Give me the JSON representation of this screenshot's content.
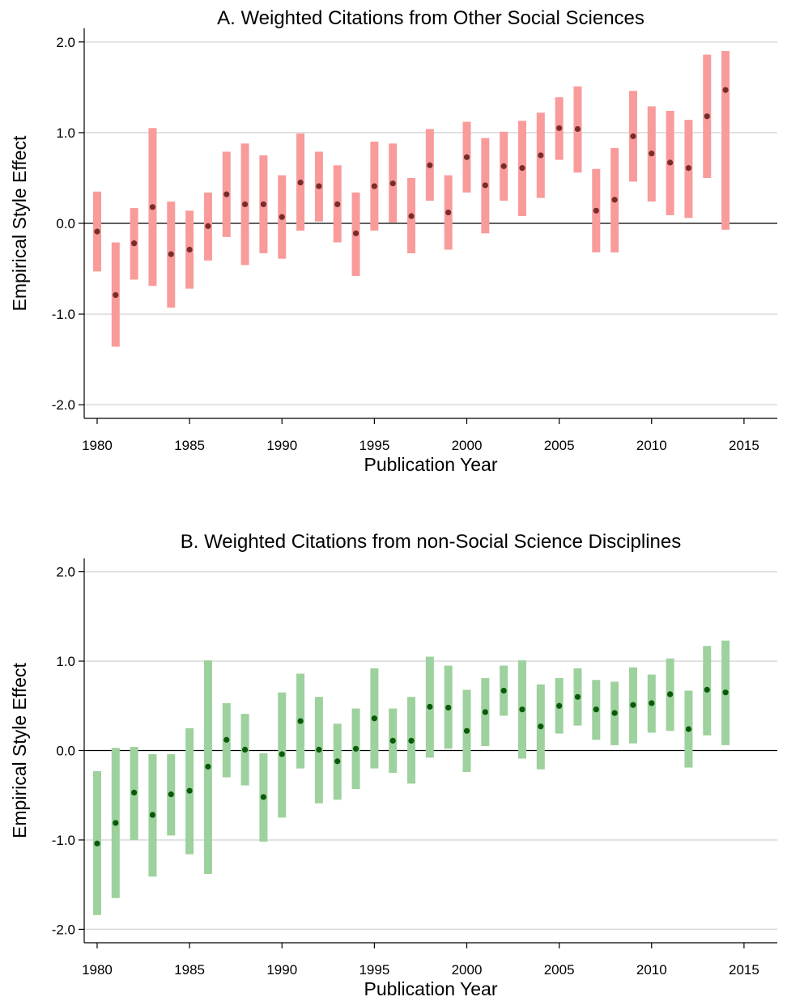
{
  "chart_data": [
    {
      "type": "scatter",
      "title": "A. Weighted Citations from Other Social Sciences",
      "xlabel": "Publication Year",
      "ylabel": "Empirical Style Effect",
      "xlim": [
        1979.3,
        2016.8
      ],
      "ylim": [
        -2.15,
        2.15
      ],
      "xticks": [
        1980,
        1985,
        1990,
        1995,
        2000,
        2005,
        2010,
        2015
      ],
      "yticks": [
        2.0,
        1.0,
        0.0,
        -1.0,
        -2.0
      ],
      "ytick_labels": [
        "2.0",
        "1.0",
        "0.0",
        "-1.0",
        "-2.0"
      ],
      "grid": "horizontal",
      "zero_line": true,
      "colors": {
        "interval": "#f99b9b",
        "point": "#7a2c2c"
      },
      "series": [
        {
          "x": [
            1980,
            1981,
            1982,
            1983,
            1984,
            1985,
            1986,
            1987,
            1988,
            1989,
            1990,
            1991,
            1992,
            1993,
            1994,
            1995,
            1996,
            1997,
            1998,
            1999,
            2000,
            2001,
            2002,
            2003,
            2004,
            2005,
            2006,
            2007,
            2008,
            2009,
            2010,
            2011,
            2012,
            2013,
            2014
          ],
          "y": [
            -0.09,
            -0.79,
            -0.22,
            0.18,
            -0.34,
            -0.29,
            -0.03,
            0.32,
            0.21,
            0.21,
            0.07,
            0.45,
            0.41,
            0.21,
            -0.11,
            0.41,
            0.44,
            0.08,
            0.64,
            0.12,
            0.73,
            0.42,
            0.63,
            0.61,
            0.75,
            1.05,
            1.04,
            0.14,
            0.26,
            0.96,
            0.77,
            0.67,
            0.61,
            1.18,
            1.47
          ],
          "low": [
            -0.53,
            -1.36,
            -0.62,
            -0.69,
            -0.93,
            -0.72,
            -0.41,
            -0.15,
            -0.46,
            -0.33,
            -0.39,
            -0.08,
            0.02,
            -0.21,
            -0.58,
            -0.08,
            0.01,
            -0.33,
            0.25,
            -0.29,
            0.34,
            -0.11,
            0.25,
            0.08,
            0.28,
            0.7,
            0.56,
            -0.32,
            -0.32,
            0.46,
            0.24,
            0.09,
            0.06,
            0.5,
            -0.07
          ],
          "high": [
            0.35,
            -0.21,
            0.17,
            1.05,
            0.24,
            0.14,
            0.34,
            0.79,
            0.88,
            0.75,
            0.53,
            0.99,
            0.79,
            0.64,
            0.34,
            0.9,
            0.88,
            0.5,
            1.04,
            0.53,
            1.12,
            0.94,
            1.01,
            1.13,
            1.22,
            1.39,
            1.51,
            0.6,
            0.83,
            1.46,
            1.29,
            1.24,
            1.14,
            1.86,
            1.9
          ]
        }
      ]
    },
    {
      "type": "scatter",
      "title": "B. Weighted Citations from non-Social Science Disciplines",
      "xlabel": "Publication Year",
      "ylabel": "Empirical Style Effect",
      "xlim": [
        1979.3,
        2016.8
      ],
      "ylim": [
        -2.15,
        2.15
      ],
      "xticks": [
        1980,
        1985,
        1990,
        1995,
        2000,
        2005,
        2010,
        2015
      ],
      "yticks": [
        2.0,
        1.0,
        0.0,
        -1.0,
        -2.0
      ],
      "ytick_labels": [
        "2.0",
        "1.0",
        "0.0",
        "-1.0",
        "-2.0"
      ],
      "grid": "horizontal",
      "zero_line": true,
      "colors": {
        "interval": "#9dd19d",
        "point": "#0a5a0a"
      },
      "series": [
        {
          "x": [
            1980,
            1981,
            1982,
            1983,
            1984,
            1985,
            1986,
            1987,
            1988,
            1989,
            1990,
            1991,
            1992,
            1993,
            1994,
            1995,
            1996,
            1997,
            1998,
            1999,
            2000,
            2001,
            2002,
            2003,
            2004,
            2005,
            2006,
            2007,
            2008,
            2009,
            2010,
            2011,
            2012,
            2013,
            2014
          ],
          "y": [
            -1.04,
            -0.81,
            -0.47,
            -0.72,
            -0.49,
            -0.45,
            -0.18,
            0.12,
            0.01,
            -0.52,
            -0.04,
            0.33,
            0.01,
            -0.12,
            0.02,
            0.36,
            0.11,
            0.11,
            0.49,
            0.48,
            0.22,
            0.43,
            0.67,
            0.46,
            0.27,
            0.5,
            0.6,
            0.46,
            0.42,
            0.51,
            0.53,
            0.63,
            0.24,
            0.68,
            0.65
          ],
          "low": [
            -1.84,
            -1.65,
            -1.0,
            -1.41,
            -0.95,
            -1.16,
            -1.38,
            -0.3,
            -0.39,
            -1.02,
            -0.75,
            -0.2,
            -0.59,
            -0.55,
            -0.43,
            -0.2,
            -0.25,
            -0.37,
            -0.08,
            0.02,
            -0.24,
            0.05,
            0.39,
            -0.09,
            -0.21,
            0.19,
            0.28,
            0.12,
            0.06,
            0.08,
            0.2,
            0.22,
            -0.19,
            0.17,
            0.06
          ],
          "high": [
            -0.23,
            0.03,
            0.04,
            -0.04,
            -0.04,
            0.25,
            1.01,
            0.53,
            0.41,
            -0.03,
            0.65,
            0.86,
            0.6,
            0.3,
            0.47,
            0.92,
            0.47,
            0.6,
            1.05,
            0.95,
            0.68,
            0.81,
            0.95,
            1.01,
            0.74,
            0.81,
            0.92,
            0.79,
            0.77,
            0.93,
            0.85,
            1.03,
            0.67,
            1.17,
            1.23
          ]
        }
      ]
    }
  ]
}
